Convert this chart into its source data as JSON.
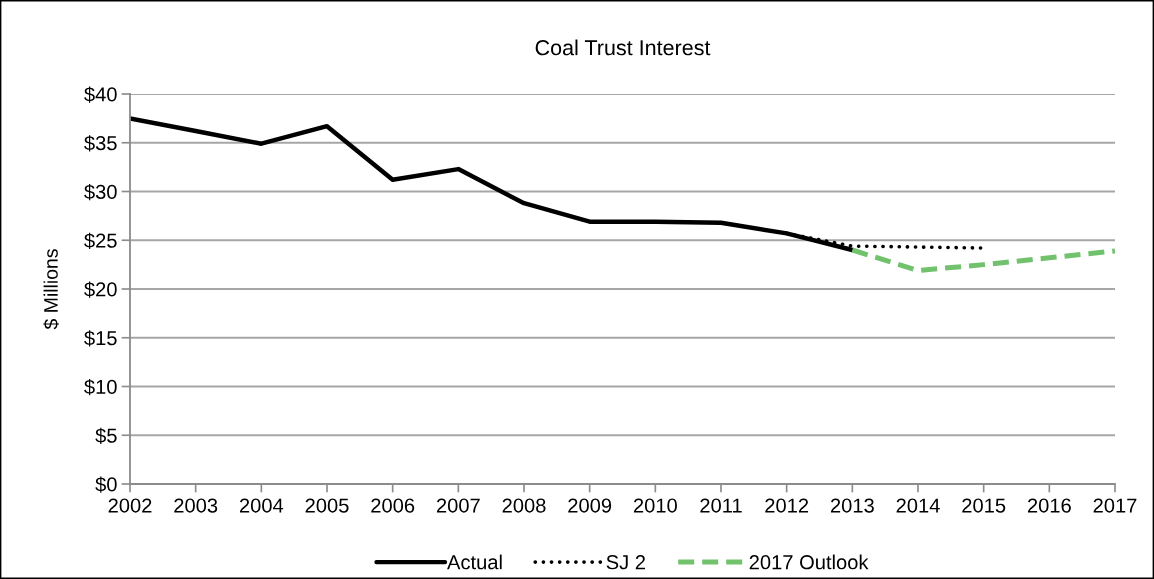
{
  "chart_data": {
    "type": "line",
    "title": "Coal Trust Interest",
    "ylabel": "$ Millions",
    "series": [
      {
        "name": "Actual",
        "color": "#000000",
        "line_style": "solid",
        "x": [
          2002,
          2003,
          2004,
          2005,
          2006,
          2007,
          2008,
          2009,
          2010,
          2011,
          2012,
          2013
        ],
        "values": [
          37.5,
          36.2,
          34.9,
          36.7,
          31.2,
          32.3,
          28.8,
          26.9,
          26.9,
          26.8,
          25.7,
          24.0
        ]
      },
      {
        "name": "SJ 2",
        "color": "#000000",
        "line_style": "dotted",
        "x": [
          2012,
          2013,
          2014,
          2015
        ],
        "values": [
          25.7,
          24.4,
          24.3,
          24.2
        ]
      },
      {
        "name": "2017 Outlook",
        "color": "#72c16d",
        "line_style": "dashed",
        "x": [
          2013,
          2014,
          2015,
          2016,
          2017
        ],
        "values": [
          24.0,
          21.9,
          22.5,
          23.2,
          23.9
        ]
      }
    ],
    "xlim": [
      2002,
      2017
    ],
    "xticks": [
      2002,
      2003,
      2004,
      2005,
      2006,
      2007,
      2008,
      2009,
      2010,
      2011,
      2012,
      2013,
      2014,
      2015,
      2016,
      2017
    ],
    "ylim": [
      0,
      40
    ],
    "yticks": [
      {
        "value": 0,
        "label": "$0"
      },
      {
        "value": 5,
        "label": "$5"
      },
      {
        "value": 10,
        "label": "$10"
      },
      {
        "value": 15,
        "label": "$15"
      },
      {
        "value": 20,
        "label": "$20"
      },
      {
        "value": 25,
        "label": "$25"
      },
      {
        "value": 30,
        "label": "$30"
      },
      {
        "value": 35,
        "label": "$35"
      },
      {
        "value": 40,
        "label": "$40"
      }
    ],
    "grid": "y",
    "legend": "bottom"
  }
}
